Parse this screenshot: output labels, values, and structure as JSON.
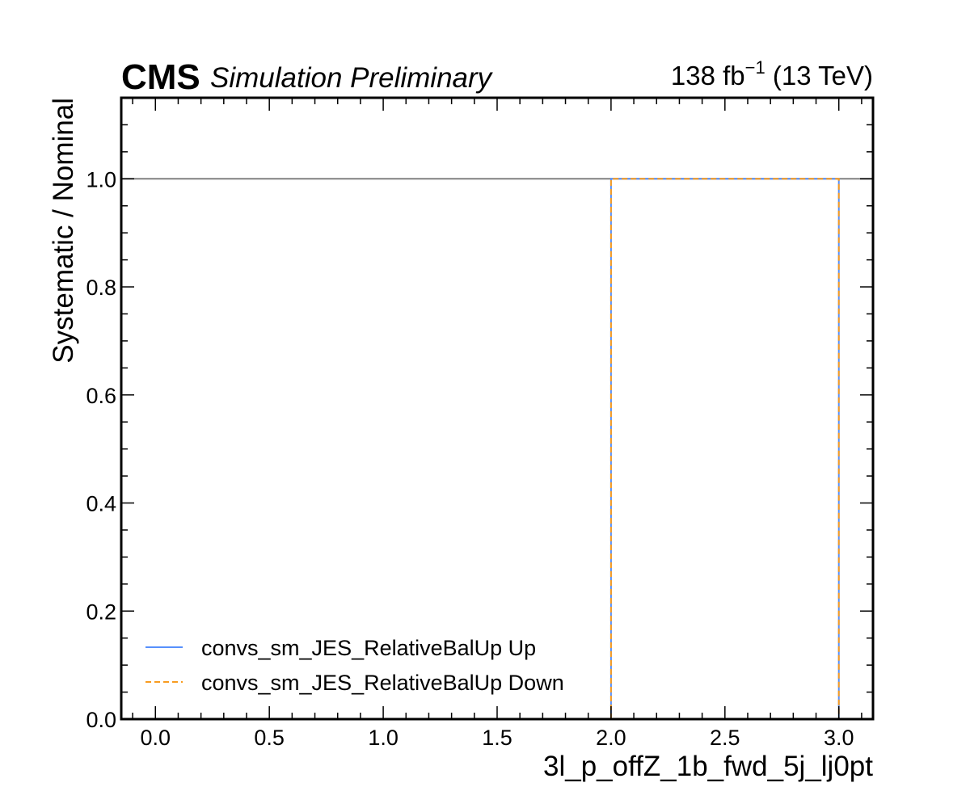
{
  "header": {
    "experiment": "CMS",
    "status": "Simulation Preliminary",
    "lumi_prefix": "138 fb",
    "lumi_exponent": "−1",
    "lumi_suffix": " (13 TeV)"
  },
  "chart_data": {
    "type": "line",
    "xlabel": "3l_p_offZ_1b_fwd_5j_lj0pt",
    "ylabel": "Systematic / Nominal",
    "xlim": [
      -0.15,
      3.15
    ],
    "ylim": [
      0.0,
      1.15
    ],
    "x_ticks": [
      "0.0",
      "0.5",
      "1.0",
      "1.5",
      "2.0",
      "2.5",
      "3.0"
    ],
    "y_ticks": [
      "0.0",
      "0.2",
      "0.4",
      "0.6",
      "0.8",
      "1.0"
    ],
    "reference_line": {
      "y": 1.0,
      "color": "#808080"
    },
    "grid": false,
    "legend_position": "lower-left",
    "series": [
      {
        "name": "convs_sm_JES_RelativeBalUp Up",
        "color": "#5790fc",
        "style": "solid",
        "x": [
          2.0,
          2.0,
          3.0,
          3.0
        ],
        "y": [
          0.0,
          1.0,
          1.0,
          0.0
        ]
      },
      {
        "name": "convs_sm_JES_RelativeBalUp Down",
        "color": "#f89c20",
        "style": "dashed",
        "x": [
          2.0,
          2.0,
          3.0,
          3.0
        ],
        "y": [
          0.0,
          1.0,
          1.0,
          0.0
        ]
      }
    ]
  }
}
